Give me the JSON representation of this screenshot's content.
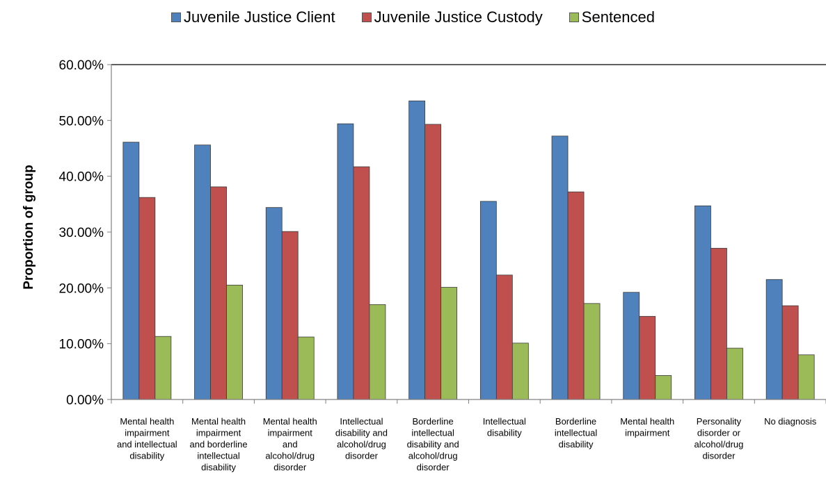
{
  "chart_data": {
    "type": "bar",
    "title": "",
    "xlabel": "",
    "ylabel": "Proportion of group",
    "ylim": [
      0,
      0.6
    ],
    "yticks": [
      "0.00%",
      "10.00%",
      "20.00%",
      "30.00%",
      "40.00%",
      "50.00%",
      "60.00%"
    ],
    "legend_position": "top",
    "grid": false,
    "categories": [
      [
        "Mental health",
        "impairment",
        "and intellectual",
        "disability"
      ],
      [
        "Mental health",
        "impairment",
        "and borderline",
        "intellectual",
        "disability"
      ],
      [
        "Mental health",
        "impairment",
        "and",
        "alcohol/drug",
        "disorder"
      ],
      [
        "Intellectual",
        "disability and",
        "alcohol/drug",
        "disorder"
      ],
      [
        "Borderline",
        "intellectual",
        "disability and",
        "alcohol/drug",
        "disorder"
      ],
      [
        "Intellectual",
        "disability"
      ],
      [
        "Borderline",
        "intellectual",
        "disability"
      ],
      [
        "Mental health",
        "impairment"
      ],
      [
        "Personality",
        "disorder or",
        "alcohol/drug",
        "disorder"
      ],
      [
        "No diagnosis"
      ]
    ],
    "series": [
      {
        "name": "Juvenile Justice Client",
        "color": "#4F81BD",
        "values": [
          0.461,
          0.456,
          0.344,
          0.494,
          0.535,
          0.355,
          0.472,
          0.192,
          0.347,
          0.215
        ]
      },
      {
        "name": "Juvenile Justice Custody",
        "color": "#C0504D",
        "values": [
          0.362,
          0.381,
          0.301,
          0.417,
          0.493,
          0.223,
          0.372,
          0.149,
          0.271,
          0.168
        ]
      },
      {
        "name": "Sentenced",
        "color": "#9BBB59",
        "values": [
          0.113,
          0.205,
          0.112,
          0.17,
          0.201,
          0.101,
          0.172,
          0.043,
          0.092,
          0.08
        ]
      }
    ]
  }
}
